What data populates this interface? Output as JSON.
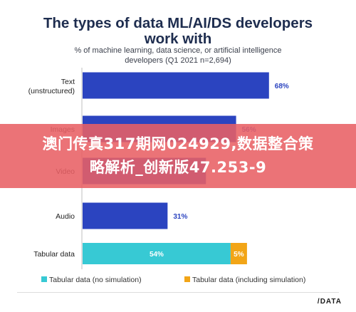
{
  "chart_data": {
    "type": "bar",
    "orientation": "horizontal",
    "title": "The types of data ML/AI/DS developers work with",
    "subtitle": "% of machine learning, data science, or artificial intelligence developers (Q1 2021 n=2,694)",
    "categories": [
      "Text (unstructured)",
      "Images",
      "Video",
      "Audio",
      "Tabular data"
    ],
    "series": [
      {
        "name": "Tabular data (no simulation)",
        "color": "#37c9d4",
        "values": [
          null,
          null,
          null,
          null,
          54
        ]
      },
      {
        "name": "Tabular data (including simulation)",
        "color": "#f2a517",
        "values": [
          null,
          null,
          null,
          null,
          5
        ]
      }
    ],
    "totals": [
      68,
      56,
      45,
      31,
      59
    ],
    "bar_color": "#2b44c0",
    "data_labels": [
      "68%",
      "56%",
      "",
      "31%",
      "54%",
      "5%"
    ],
    "xlim": [
      0,
      100
    ],
    "grid": false,
    "legend": "bottom"
  },
  "header": {
    "title": "The types of data ML/AI/DS developers work with",
    "subtitle_line1": "% of machine learning, data science, or artificial intelligence",
    "subtitle_line2": "developers (Q1 2021 n=2,694)"
  },
  "legend": {
    "item1": "Tabular data (no simulation)",
    "item2": "Tabular data (including simulation)"
  },
  "banner": {
    "line1": "澳门传真317期网024929,数据整合策",
    "line2": "略解析_创新版47.253-9"
  },
  "brand": {
    "logo": "/DATA"
  }
}
